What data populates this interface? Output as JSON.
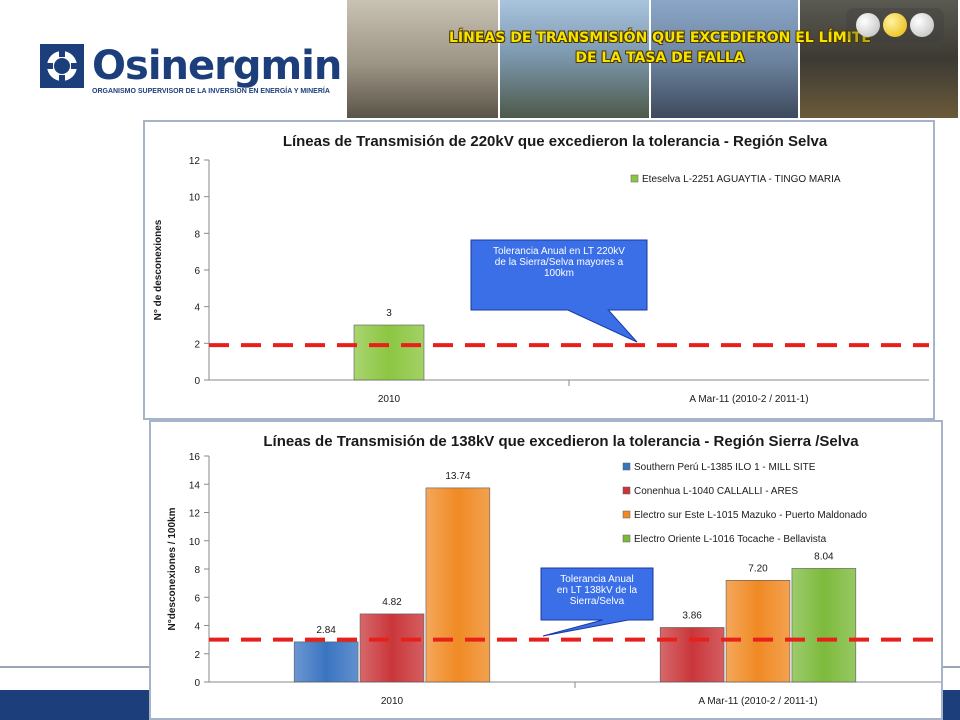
{
  "header": {
    "logo_text": "Osinergmin",
    "logo_subtitle": "ORGANISMO SUPERVISOR DE LA INVERSIÓN EN ENERGÍA Y MINERÍA",
    "banner_line1": "LÍNEAS DE TRANSMISIÓN QUE EXCEDIERON EL LÍMITE",
    "banner_line2": "DE LA TASA DE FALLA",
    "colors": {
      "brand": "#1c3f7c",
      "banner_text": "#f7e300"
    }
  },
  "chart_data": [
    {
      "type": "bar",
      "title": "Líneas de Transmisión de 220kV que excedieron la tolerancia - Región Selva",
      "ylabel": "N° de desconexiones",
      "xlabel": "",
      "categories": [
        "2010",
        "A Mar-11 (2010-2 / 2011-1)"
      ],
      "ylim": [
        0,
        12
      ],
      "yticks": [
        "0",
        "2",
        "4",
        "6",
        "8",
        "10",
        "12"
      ],
      "series": [
        {
          "name": "Eteselva L-2251 AGUAYTIA - TINGO MARIA",
          "color": "#8cc641",
          "values": [
            3,
            null
          ],
          "labels": [
            "3",
            ""
          ]
        }
      ],
      "tolerance": 1.9,
      "tolerance_color": "#e8201c",
      "callout": "Tolerancia Anual en LT 220kV de la Sierra/Selva mayores a 100km",
      "legend_position": "top-right",
      "grid": false
    },
    {
      "type": "bar",
      "title": "Líneas de Transmisión de 138kV que excedieron la tolerancia - Región Sierra /Selva",
      "ylabel": "N°desconexiones / 100km",
      "xlabel": "",
      "categories": [
        "2010",
        "A Mar-11 (2010-2 / 2011-1)"
      ],
      "ylim": [
        0,
        16
      ],
      "yticks": [
        "0",
        "2",
        "4",
        "6",
        "8",
        "10",
        "12",
        "14",
        "16"
      ],
      "series": [
        {
          "name": "Southern Perú L-1385 ILO 1 - MILL SITE",
          "color": "#3a74c1",
          "values": [
            2.84,
            null
          ],
          "labels": [
            "2.84",
            ""
          ]
        },
        {
          "name": "Conenhua L-1040 CALLALLI - ARES",
          "color": "#c9363a",
          "values": [
            4.82,
            3.86
          ],
          "labels": [
            "4.82",
            "3.86"
          ]
        },
        {
          "name": "Electro sur Este L-1015 Mazuko - Puerto Maldonado",
          "color": "#f08a24",
          "values": [
            13.74,
            7.2
          ],
          "labels": [
            "13.74",
            "7.20"
          ]
        },
        {
          "name": "Electro Oriente L-1016 Tocache - Bellavista",
          "color": "#7dba3c",
          "values": [
            null,
            8.04
          ],
          "labels": [
            "",
            "8.04"
          ]
        }
      ],
      "tolerance": 3.0,
      "tolerance_color": "#e8201c",
      "callout": "Tolerancia Anual en LT 138kV de la Sierra/Selva",
      "legend_position": "top-right",
      "grid": false
    }
  ]
}
